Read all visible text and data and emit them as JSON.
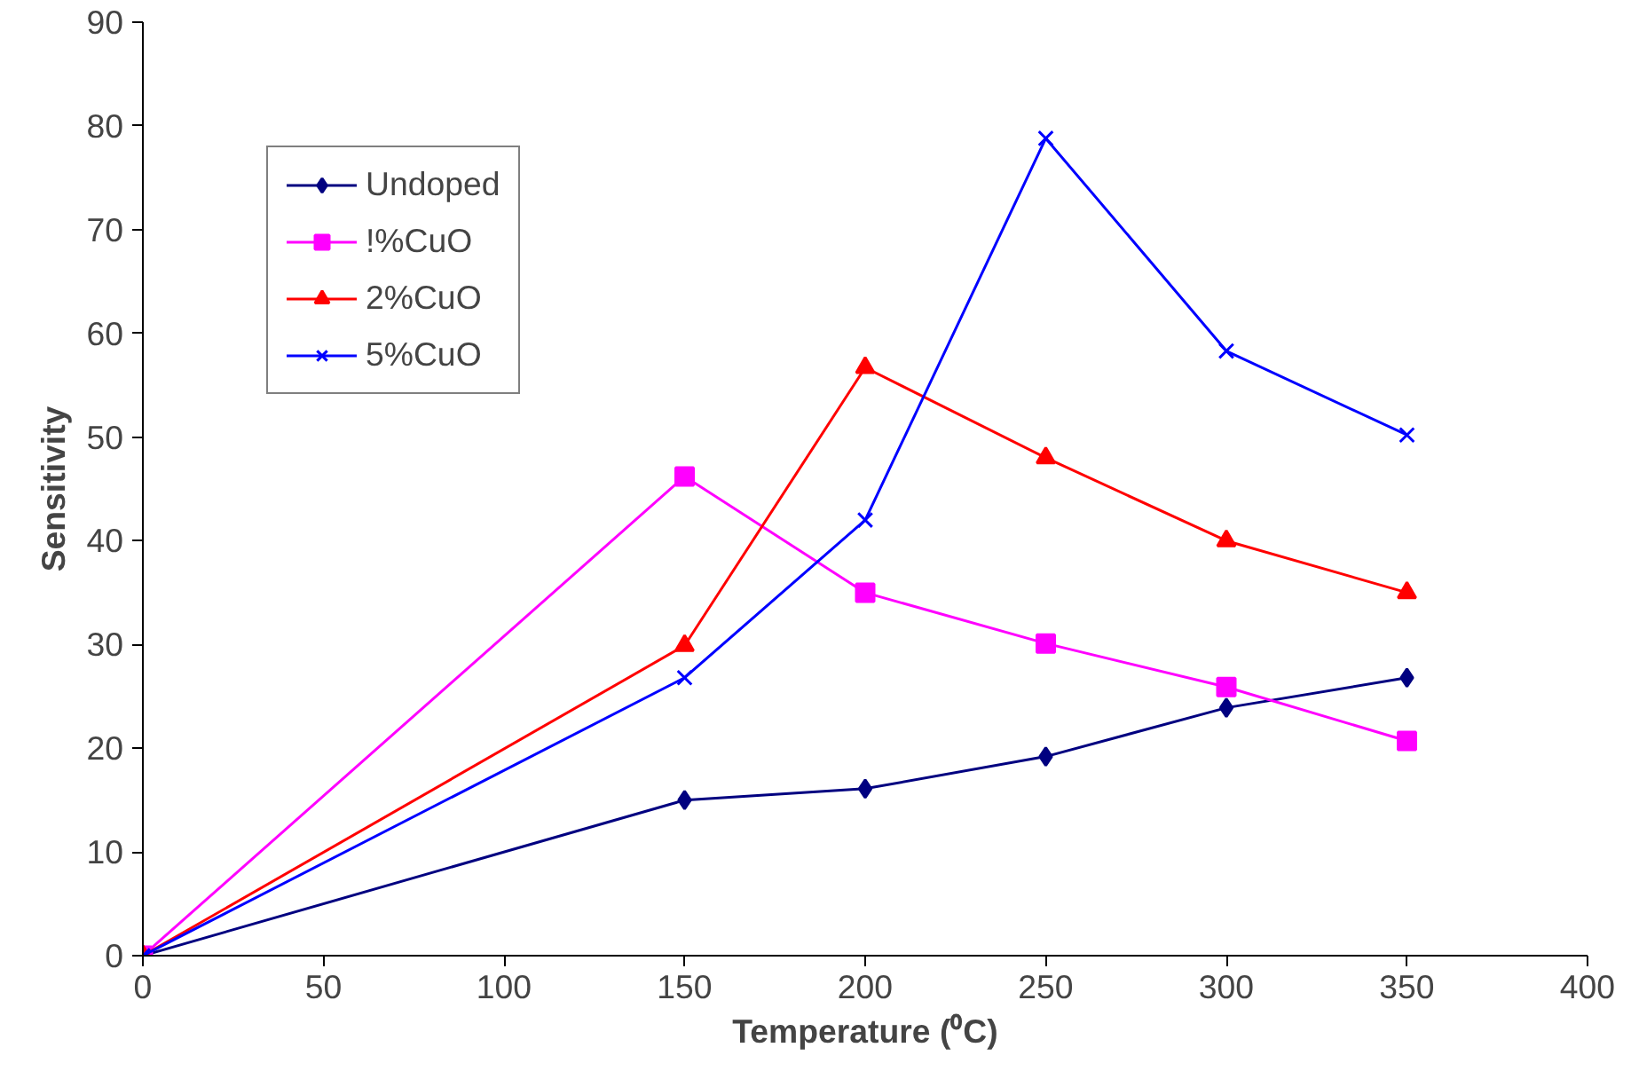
{
  "chart_data": {
    "type": "line",
    "xlabel": "Temperature (⁰C)",
    "ylabel": "Sensitivity",
    "x": [
      0,
      150,
      200,
      250,
      300,
      350
    ],
    "series": [
      {
        "name": "Undoped",
        "color": "#000080",
        "marker": "diamond",
        "values": [
          0,
          15.0,
          16.1,
          19.2,
          23.9,
          26.8
        ]
      },
      {
        "name": "!%CuO",
        "color": "#ff00ff",
        "marker": "square",
        "values": [
          0,
          46.2,
          35.0,
          30.1,
          25.9,
          20.7
        ]
      },
      {
        "name": "2%CuO",
        "color": "#ff0000",
        "marker": "triangle",
        "values": [
          0,
          29.9,
          56.7,
          48.0,
          40.0,
          35.0
        ]
      },
      {
        "name": "5%CuO",
        "color": "#0000ff",
        "marker": "cross",
        "values": [
          0,
          26.8,
          42.0,
          78.8,
          58.3,
          50.2
        ]
      }
    ],
    "xlim": [
      0,
      400
    ],
    "xticks": [
      0,
      50,
      100,
      150,
      200,
      250,
      300,
      350,
      400
    ],
    "ylim": [
      0,
      90
    ],
    "yticks": [
      0,
      10,
      20,
      30,
      40,
      50,
      60,
      70,
      80,
      90
    ],
    "grid": false,
    "legend": "top left",
    "line_style": "solid"
  }
}
